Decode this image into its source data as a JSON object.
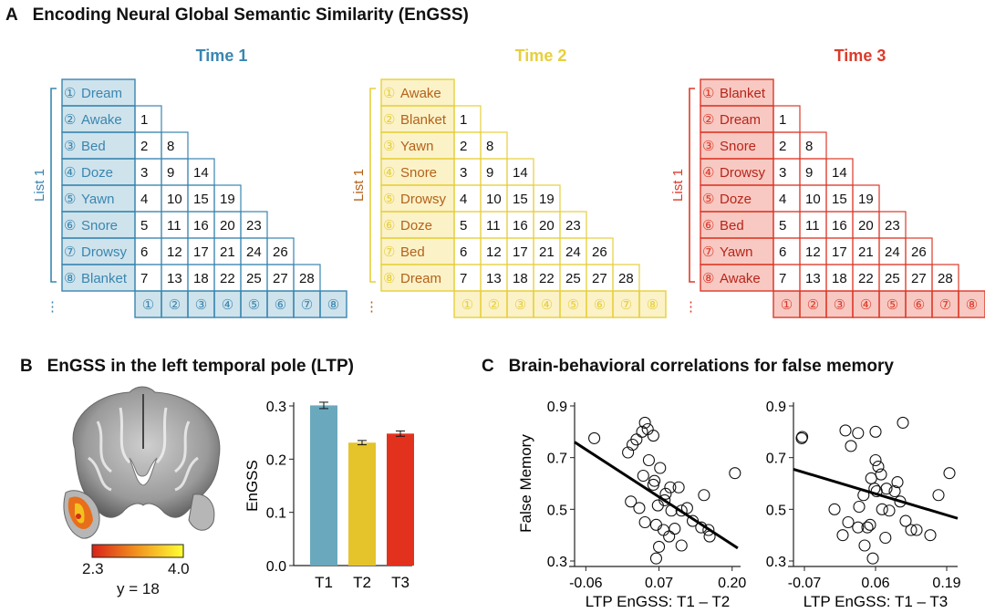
{
  "panelA": {
    "letter": "A",
    "title": "Encoding Neural Global Semantic Similarity (EnGSS)",
    "list_label": "List 1",
    "more_mark": "⋮",
    "circled": [
      "①",
      "②",
      "③",
      "④",
      "⑤",
      "⑥",
      "⑦",
      "⑧"
    ],
    "matrix_numbers": [
      [
        1
      ],
      [
        2,
        8
      ],
      [
        3,
        9,
        14
      ],
      [
        4,
        10,
        15,
        19
      ],
      [
        5,
        11,
        16,
        20,
        23
      ],
      [
        6,
        12,
        17,
        21,
        24,
        26
      ],
      [
        7,
        13,
        18,
        22,
        25,
        27,
        28
      ]
    ],
    "times": [
      {
        "title": "Time 1",
        "color": "#3a86b0",
        "fill": "#cfe3ec",
        "words": [
          "Dream",
          "Awake",
          "Bed",
          "Doze",
          "Yawn",
          "Snore",
          "Drowsy",
          "Blanket"
        ]
      },
      {
        "title": "Time 2",
        "color": "#e7cf3c",
        "fill": "#fbf2c8",
        "words": [
          "Awake",
          "Blanket",
          "Yawn",
          "Snore",
          "Drowsy",
          "Doze",
          "Bed",
          "Dream"
        ]
      },
      {
        "title": "Time 3",
        "color": "#dd3a2a",
        "fill": "#f7c9c2",
        "words": [
          "Blanket",
          "Dream",
          "Snore",
          "Drowsy",
          "Doze",
          "Bed",
          "Yawn",
          "Awake"
        ]
      }
    ]
  },
  "panelB": {
    "letter": "B",
    "title": "EnGSS in the left temporal pole (LTP)",
    "colorbar_min": "2.3",
    "colorbar_max": "4.0",
    "slice_label": "y = 18"
  },
  "panelC": {
    "letter": "C",
    "title": "Brain-behavioral correlations for false memory"
  },
  "chart_data": [
    {
      "type": "bar",
      "categories": [
        "T1",
        "T2",
        "T3"
      ],
      "values": [
        0.301,
        0.231,
        0.248
      ],
      "errors": [
        0.006,
        0.004,
        0.005
      ],
      "colors": [
        "#6aa9bd",
        "#e4c42a",
        "#e2321e"
      ],
      "ylabel": "EnGSS",
      "ylim": [
        0.0,
        0.3
      ],
      "yticks": [
        "0.0",
        "0.1",
        "0.2",
        "0.3"
      ]
    },
    {
      "type": "scatter",
      "xlabel": "LTP EnGSS: T1 – T2",
      "ylabel": "False Memory",
      "xlim": [
        -0.08,
        0.215
      ],
      "ylim": [
        0.3,
        0.9
      ],
      "xticks": [
        -0.06,
        0.07,
        0.2
      ],
      "xtick_labels": [
        "-0.06",
        "0.07",
        "0.20"
      ],
      "yticks": [
        0.3,
        0.5,
        0.7,
        0.9
      ],
      "ytick_labels": [
        "0.3",
        "0.5",
        "0.7",
        "0.9"
      ],
      "fit_line": [
        [
          -0.08,
          0.76
        ],
        [
          0.21,
          0.35
        ]
      ],
      "points": [
        [
          -0.045,
          0.775
        ],
        [
          0.015,
          0.72
        ],
        [
          0.023,
          0.75
        ],
        [
          0.03,
          0.77
        ],
        [
          0.04,
          0.8
        ],
        [
          0.045,
          0.835
        ],
        [
          0.05,
          0.81
        ],
        [
          0.06,
          0.785
        ],
        [
          0.052,
          0.69
        ],
        [
          0.062,
          0.61
        ],
        [
          0.072,
          0.66
        ],
        [
          0.042,
          0.63
        ],
        [
          0.06,
          0.595
        ],
        [
          0.082,
          0.56
        ],
        [
          0.09,
          0.585
        ],
        [
          0.105,
          0.585
        ],
        [
          0.08,
          0.535
        ],
        [
          0.02,
          0.53
        ],
        [
          0.068,
          0.515
        ],
        [
          0.092,
          0.495
        ],
        [
          0.11,
          0.495
        ],
        [
          0.12,
          0.505
        ],
        [
          0.13,
          0.455
        ],
        [
          0.035,
          0.505
        ],
        [
          0.045,
          0.45
        ],
        [
          0.065,
          0.44
        ],
        [
          0.078,
          0.42
        ],
        [
          0.088,
          0.395
        ],
        [
          0.098,
          0.425
        ],
        [
          0.11,
          0.36
        ],
        [
          0.07,
          0.355
        ],
        [
          0.065,
          0.31
        ],
        [
          0.145,
          0.43
        ],
        [
          0.158,
          0.42
        ],
        [
          0.16,
          0.395
        ],
        [
          0.15,
          0.555
        ],
        [
          0.205,
          0.64
        ]
      ]
    },
    {
      "type": "scatter",
      "xlabel": "LTP EnGSS: T1 – T3",
      "ylabel": "",
      "xlim": [
        -0.09,
        0.21
      ],
      "ylim": [
        0.3,
        0.9
      ],
      "xticks": [
        -0.07,
        0.06,
        0.19
      ],
      "xtick_labels": [
        "-0.07",
        "0.06",
        "0.19"
      ],
      "yticks": [
        0.3,
        0.5,
        0.7,
        0.9
      ],
      "ytick_labels": [
        "0.3",
        "0.5",
        "0.7",
        "0.9"
      ],
      "fit_line": [
        [
          -0.09,
          0.655
        ],
        [
          0.21,
          0.465
        ]
      ],
      "points": [
        [
          -0.075,
          0.775
        ],
        [
          -0.074,
          0.78
        ],
        [
          0.005,
          0.805
        ],
        [
          0.028,
          0.795
        ],
        [
          0.06,
          0.8
        ],
        [
          0.11,
          0.835
        ],
        [
          0.015,
          0.745
        ],
        [
          0.06,
          0.69
        ],
        [
          0.065,
          0.665
        ],
        [
          0.07,
          0.635
        ],
        [
          0.052,
          0.62
        ],
        [
          0.058,
          0.58
        ],
        [
          0.062,
          0.57
        ],
        [
          0.08,
          0.58
        ],
        [
          0.095,
          0.57
        ],
        [
          0.1,
          0.605
        ],
        [
          0.105,
          0.53
        ],
        [
          0.085,
          0.495
        ],
        [
          0.072,
          0.5
        ],
        [
          0.038,
          0.555
        ],
        [
          0.03,
          0.51
        ],
        [
          0.01,
          0.45
        ],
        [
          0.028,
          0.43
        ],
        [
          0.045,
          0.43
        ],
        [
          0.05,
          0.44
        ],
        [
          -0.015,
          0.5
        ],
        [
          0.0,
          0.4
        ],
        [
          0.04,
          0.36
        ],
        [
          0.055,
          0.31
        ],
        [
          0.078,
          0.39
        ],
        [
          0.115,
          0.455
        ],
        [
          0.125,
          0.42
        ],
        [
          0.135,
          0.42
        ],
        [
          0.16,
          0.4
        ],
        [
          0.175,
          0.555
        ],
        [
          0.195,
          0.64
        ]
      ]
    }
  ]
}
